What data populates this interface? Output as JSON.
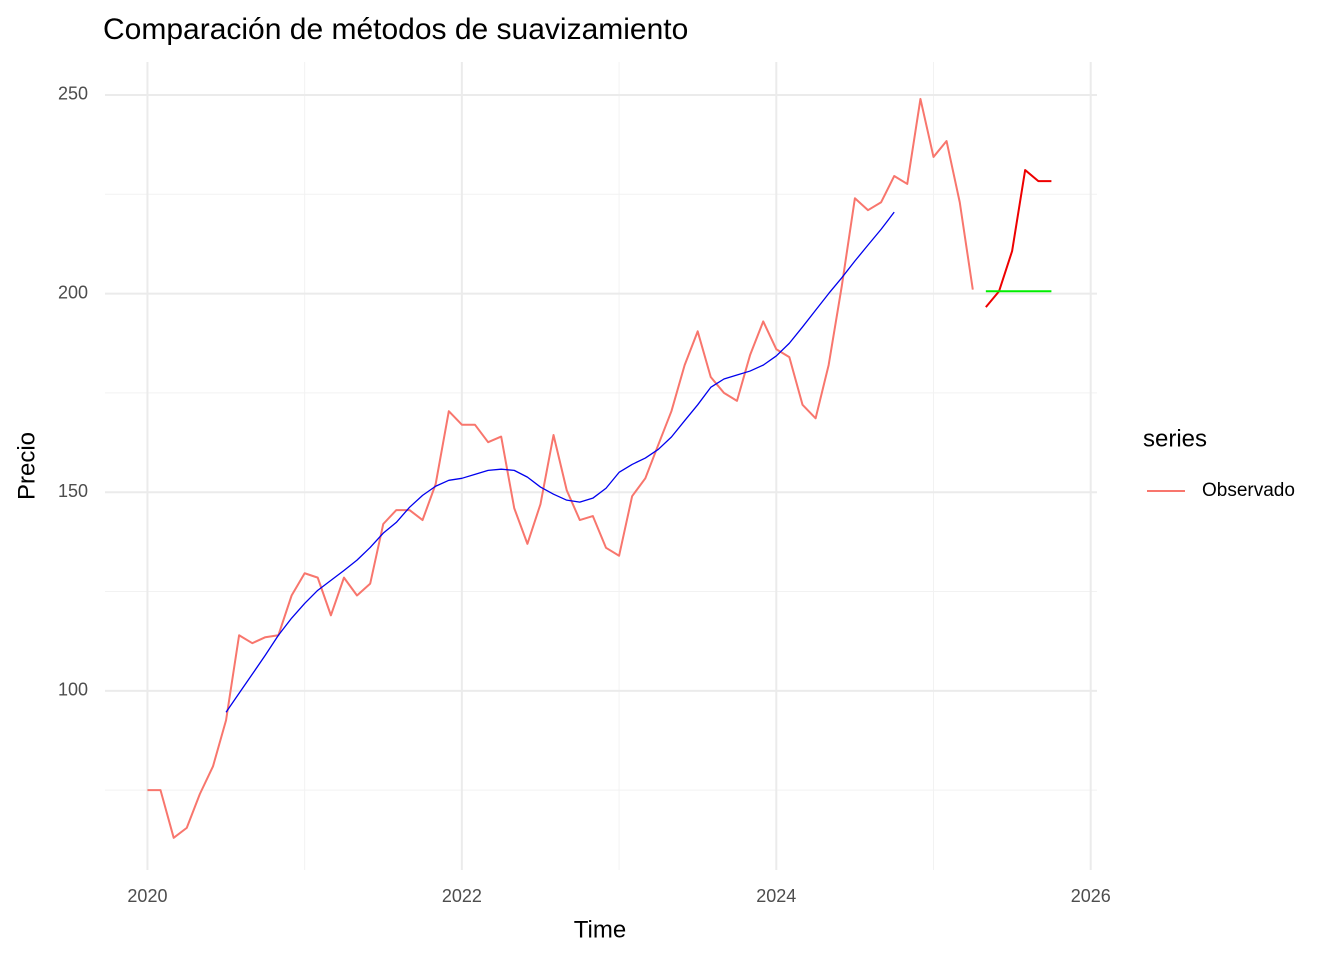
{
  "chart_data": {
    "type": "line",
    "title": "Comparación de métodos de suavizamiento",
    "x_label": "Time",
    "y_label": "Precio",
    "legend_title": "series",
    "x": [
      2020,
      2020.083,
      2020.167,
      2020.25,
      2020.333,
      2020.417,
      2020.5,
      2020.583,
      2020.667,
      2020.75,
      2020.833,
      2020.917,
      2021,
      2021.083,
      2021.167,
      2021.25,
      2021.333,
      2021.417,
      2021.5,
      2021.583,
      2021.667,
      2021.75,
      2021.833,
      2021.917,
      2022,
      2022.083,
      2022.167,
      2022.25,
      2022.333,
      2022.417,
      2022.5,
      2022.583,
      2022.667,
      2022.75,
      2022.833,
      2022.917,
      2023,
      2023.083,
      2023.167,
      2023.25,
      2023.333,
      2023.417,
      2023.5,
      2023.583,
      2023.667,
      2023.75,
      2023.833,
      2023.917,
      2024,
      2024.083,
      2024.167,
      2024.25,
      2024.333,
      2024.417,
      2024.5,
      2024.583,
      2024.667,
      2024.75,
      2024.833,
      2024.917,
      2025,
      2025.083,
      2025.167,
      2025.25,
      2025.333,
      2025.417,
      2025.5,
      2025.583,
      2025.667,
      2025.75
    ],
    "series": [
      {
        "name": "Observado",
        "color": "#F8766D",
        "values": [
          75,
          75,
          63,
          65.5,
          74,
          81,
          92.6,
          114,
          112,
          113.5,
          114,
          124,
          129.6,
          128.5,
          119,
          128.5,
          124,
          127,
          142,
          145.5,
          145.5,
          143,
          152,
          170.4,
          167,
          167,
          162.6,
          164,
          146,
          137,
          147,
          164.4,
          150.5,
          143,
          144,
          136,
          134,
          149,
          153.5,
          162,
          170.4,
          182,
          190.5,
          179,
          175,
          173,
          184.5,
          193,
          186,
          184,
          172,
          168.6,
          182,
          202,
          224,
          221,
          223,
          229.6,
          227.6,
          249,
          234.4,
          238.4,
          223,
          201,
          null,
          null,
          null,
          null,
          null,
          null
        ]
      },
      {
        "color": "#0000EE",
        "values": [
          null,
          null,
          null,
          null,
          null,
          null,
          94.6,
          99.4,
          104.2,
          109,
          114,
          118.3,
          122,
          125.3,
          127.8,
          130.3,
          132.9,
          136.1,
          139.7,
          142.4,
          146.2,
          149.2,
          151.5,
          153,
          153.5,
          154.5,
          155.5,
          155.8,
          155.5,
          153.8,
          151.3,
          149.5,
          148,
          147.5,
          148.5,
          151,
          155,
          157,
          158.6,
          160.8,
          163.9,
          168,
          172,
          176.4,
          178.5,
          179.5,
          180.5,
          182,
          184.3,
          187.5,
          191.6,
          195.8,
          200,
          204,
          208.2,
          212.2,
          216.2,
          220.5,
          null,
          null,
          null,
          null,
          null,
          null,
          null,
          null,
          null,
          null,
          null,
          null
        ]
      },
      {
        "color": "#EE0000",
        "values": [
          null,
          null,
          null,
          null,
          null,
          null,
          null,
          null,
          null,
          null,
          null,
          null,
          null,
          null,
          null,
          null,
          null,
          null,
          null,
          null,
          null,
          null,
          null,
          null,
          null,
          null,
          null,
          null,
          null,
          null,
          null,
          null,
          null,
          null,
          null,
          null,
          null,
          null,
          null,
          null,
          null,
          null,
          null,
          null,
          null,
          null,
          null,
          null,
          null,
          null,
          null,
          null,
          null,
          null,
          null,
          null,
          null,
          null,
          null,
          null,
          null,
          null,
          null,
          null,
          196.6,
          200.6,
          210.7,
          231.1,
          228.3,
          228.3
        ]
      },
      {
        "color": "#00EE00",
        "values": [
          null,
          null,
          null,
          null,
          null,
          null,
          null,
          null,
          null,
          null,
          null,
          null,
          null,
          null,
          null,
          null,
          null,
          null,
          null,
          null,
          null,
          null,
          null,
          null,
          null,
          null,
          null,
          null,
          null,
          null,
          null,
          null,
          null,
          null,
          null,
          null,
          null,
          null,
          null,
          null,
          null,
          null,
          null,
          null,
          null,
          null,
          null,
          null,
          null,
          null,
          null,
          null,
          null,
          null,
          null,
          null,
          null,
          null,
          null,
          null,
          null,
          null,
          null,
          null,
          200.6,
          200.6,
          200.6,
          200.6,
          200.6,
          200.6
        ]
      }
    ],
    "xlim": [
      2019.73,
      2026.04
    ],
    "ylim": [
      54.9,
      258.3
    ],
    "xticks": [
      2020,
      2022,
      2024,
      2026
    ],
    "yticks": [
      100,
      150,
      200,
      250
    ],
    "xminor_ticks": [
      2021,
      2023,
      2025
    ],
    "yminor_ticks": [
      75,
      125,
      175,
      225
    ],
    "grid": true,
    "legend_position": "right"
  }
}
